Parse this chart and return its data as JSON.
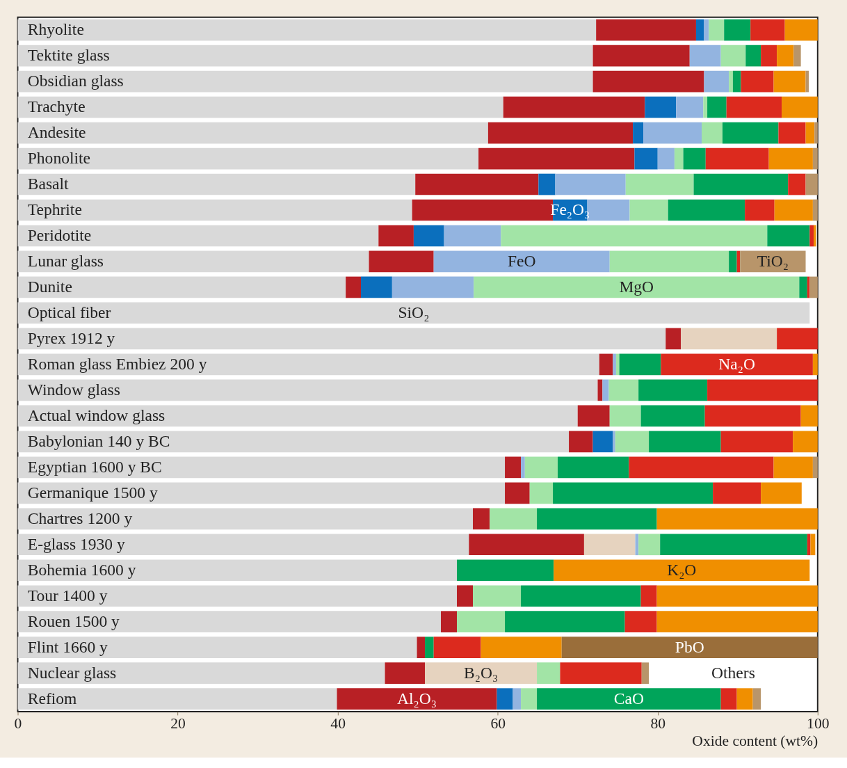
{
  "chart_data": {
    "type": "bar",
    "orientation": "horizontal",
    "stacked": true,
    "xlabel": "Oxide content (wt%)",
    "xlim": [
      0,
      100
    ],
    "xticks": [
      0,
      20,
      40,
      60,
      80,
      100
    ],
    "grid": false,
    "legend": false,
    "categories": [
      "Rhyolite",
      "Tektite glass",
      "Obsidian glass",
      "Trachyte",
      "Andesite",
      "Phonolite",
      "Basalt",
      "Tephrite",
      "Peridotite",
      "Lunar glass",
      "Dunite",
      "Optical fiber",
      "Pyrex 1912 y",
      "Roman glass Embiez 200 y",
      "Window glass",
      "Actual window glass",
      "Babylonian 140 y BC",
      "Egyptian 1600 y BC",
      "Germanique 1500 y",
      "Chartres 1200 y",
      "E-glass 1930 y",
      "Bohemia 1600 y",
      "Tour 1400 y",
      "Rouen 1500 y",
      "Flint 1660 y",
      "Nuclear glass",
      "Refiom"
    ],
    "series": [
      {
        "name": "SiO₂",
        "color": "#d9d9d9",
        "values": [
          72.3,
          71.9,
          71.9,
          60.7,
          58.8,
          57.6,
          49.7,
          49.3,
          45.1,
          43.9,
          41.0,
          99.0,
          81.0,
          72.7,
          72.5,
          70.0,
          68.9,
          60.9,
          60.9,
          56.9,
          56.4,
          54.9,
          54.9,
          52.9,
          49.9,
          45.9,
          39.9
        ]
      },
      {
        "name": "Al₂O₃",
        "color": "#b82025",
        "values": [
          12.5,
          12.1,
          13.9,
          17.7,
          18.1,
          19.5,
          15.4,
          17.6,
          4.4,
          8.1,
          1.9,
          null,
          1.9,
          1.7,
          0.6,
          4.0,
          3.0,
          2.0,
          3.1,
          2.1,
          14.4,
          null,
          2.0,
          2.0,
          1.0,
          5.0,
          20.0
        ]
      },
      {
        "name": "B₂O₃",
        "color": "#e6d3bf",
        "values": [
          null,
          null,
          null,
          null,
          null,
          null,
          null,
          null,
          null,
          null,
          null,
          null,
          12.0,
          null,
          null,
          null,
          null,
          null,
          null,
          null,
          6.4,
          null,
          null,
          null,
          null,
          14.0,
          null
        ]
      },
      {
        "name": "Fe₂O₃",
        "color": "#0b6fbd",
        "values": [
          1.0,
          null,
          null,
          3.9,
          1.3,
          2.9,
          2.1,
          4.3,
          3.8,
          null,
          3.9,
          null,
          null,
          null,
          null,
          null,
          2.5,
          null,
          null,
          null,
          null,
          null,
          null,
          null,
          null,
          null,
          2.0
        ]
      },
      {
        "name": "FeO",
        "color": "#93b4e0",
        "values": [
          0.6,
          3.9,
          3.1,
          3.4,
          7.3,
          2.1,
          8.8,
          5.3,
          7.1,
          22.0,
          10.2,
          null,
          null,
          0.4,
          0.8,
          null,
          0.3,
          0.5,
          null,
          null,
          0.4,
          null,
          null,
          null,
          null,
          null,
          1.0
        ]
      },
      {
        "name": "MgO",
        "color": "#a2e4a6",
        "values": [
          1.9,
          3.1,
          0.5,
          0.5,
          2.6,
          1.1,
          8.5,
          4.8,
          33.3,
          14.9,
          40.7,
          null,
          null,
          0.4,
          3.7,
          3.9,
          4.2,
          4.1,
          2.9,
          5.9,
          2.7,
          null,
          6.0,
          6.0,
          null,
          2.9,
          2.0
        ]
      },
      {
        "name": "CaO",
        "color": "#00a45a",
        "values": [
          3.3,
          1.9,
          1.0,
          2.4,
          7.0,
          2.8,
          11.8,
          9.6,
          5.3,
          1.0,
          1.0,
          null,
          null,
          5.2,
          8.6,
          8.0,
          9.0,
          8.9,
          20.0,
          15.0,
          18.4,
          12.1,
          15.0,
          15.0,
          1.1,
          null,
          23.0
        ]
      },
      {
        "name": "Na₂O",
        "color": "#dc2a1e",
        "values": [
          4.3,
          2.0,
          4.1,
          6.9,
          3.4,
          7.9,
          2.2,
          3.7,
          0.5,
          0.4,
          0.3,
          null,
          5.1,
          19.0,
          13.8,
          12.0,
          9.0,
          18.1,
          6.0,
          null,
          0.4,
          null,
          2.0,
          4.0,
          5.9,
          10.2,
          2.0
        ]
      },
      {
        "name": "K₂O",
        "color": "#f08f00",
        "values": [
          4.1,
          2.1,
          4.0,
          4.5,
          1.1,
          5.5,
          null,
          4.8,
          0.3,
          null,
          null,
          null,
          null,
          0.6,
          null,
          2.1,
          3.1,
          4.9,
          5.1,
          20.1,
          0.6,
          32.0,
          20.1,
          20.1,
          10.1,
          null,
          2.0
        ]
      },
      {
        "name": "PbO",
        "color": "#9a6e3a",
        "values": [
          null,
          null,
          null,
          null,
          null,
          null,
          null,
          null,
          null,
          null,
          null,
          null,
          null,
          null,
          null,
          null,
          null,
          null,
          null,
          null,
          null,
          null,
          null,
          null,
          32.0,
          null,
          null
        ]
      },
      {
        "name": "TiO₂",
        "color": "#b8956a",
        "values": [
          null,
          0.9,
          0.4,
          null,
          0.4,
          0.6,
          1.5,
          0.6,
          null,
          8.2,
          1.0,
          null,
          null,
          null,
          null,
          null,
          null,
          0.6,
          null,
          null,
          null,
          null,
          null,
          null,
          null,
          0.9,
          1.0
        ]
      }
    ],
    "annotations": [
      "Others"
    ]
  }
}
